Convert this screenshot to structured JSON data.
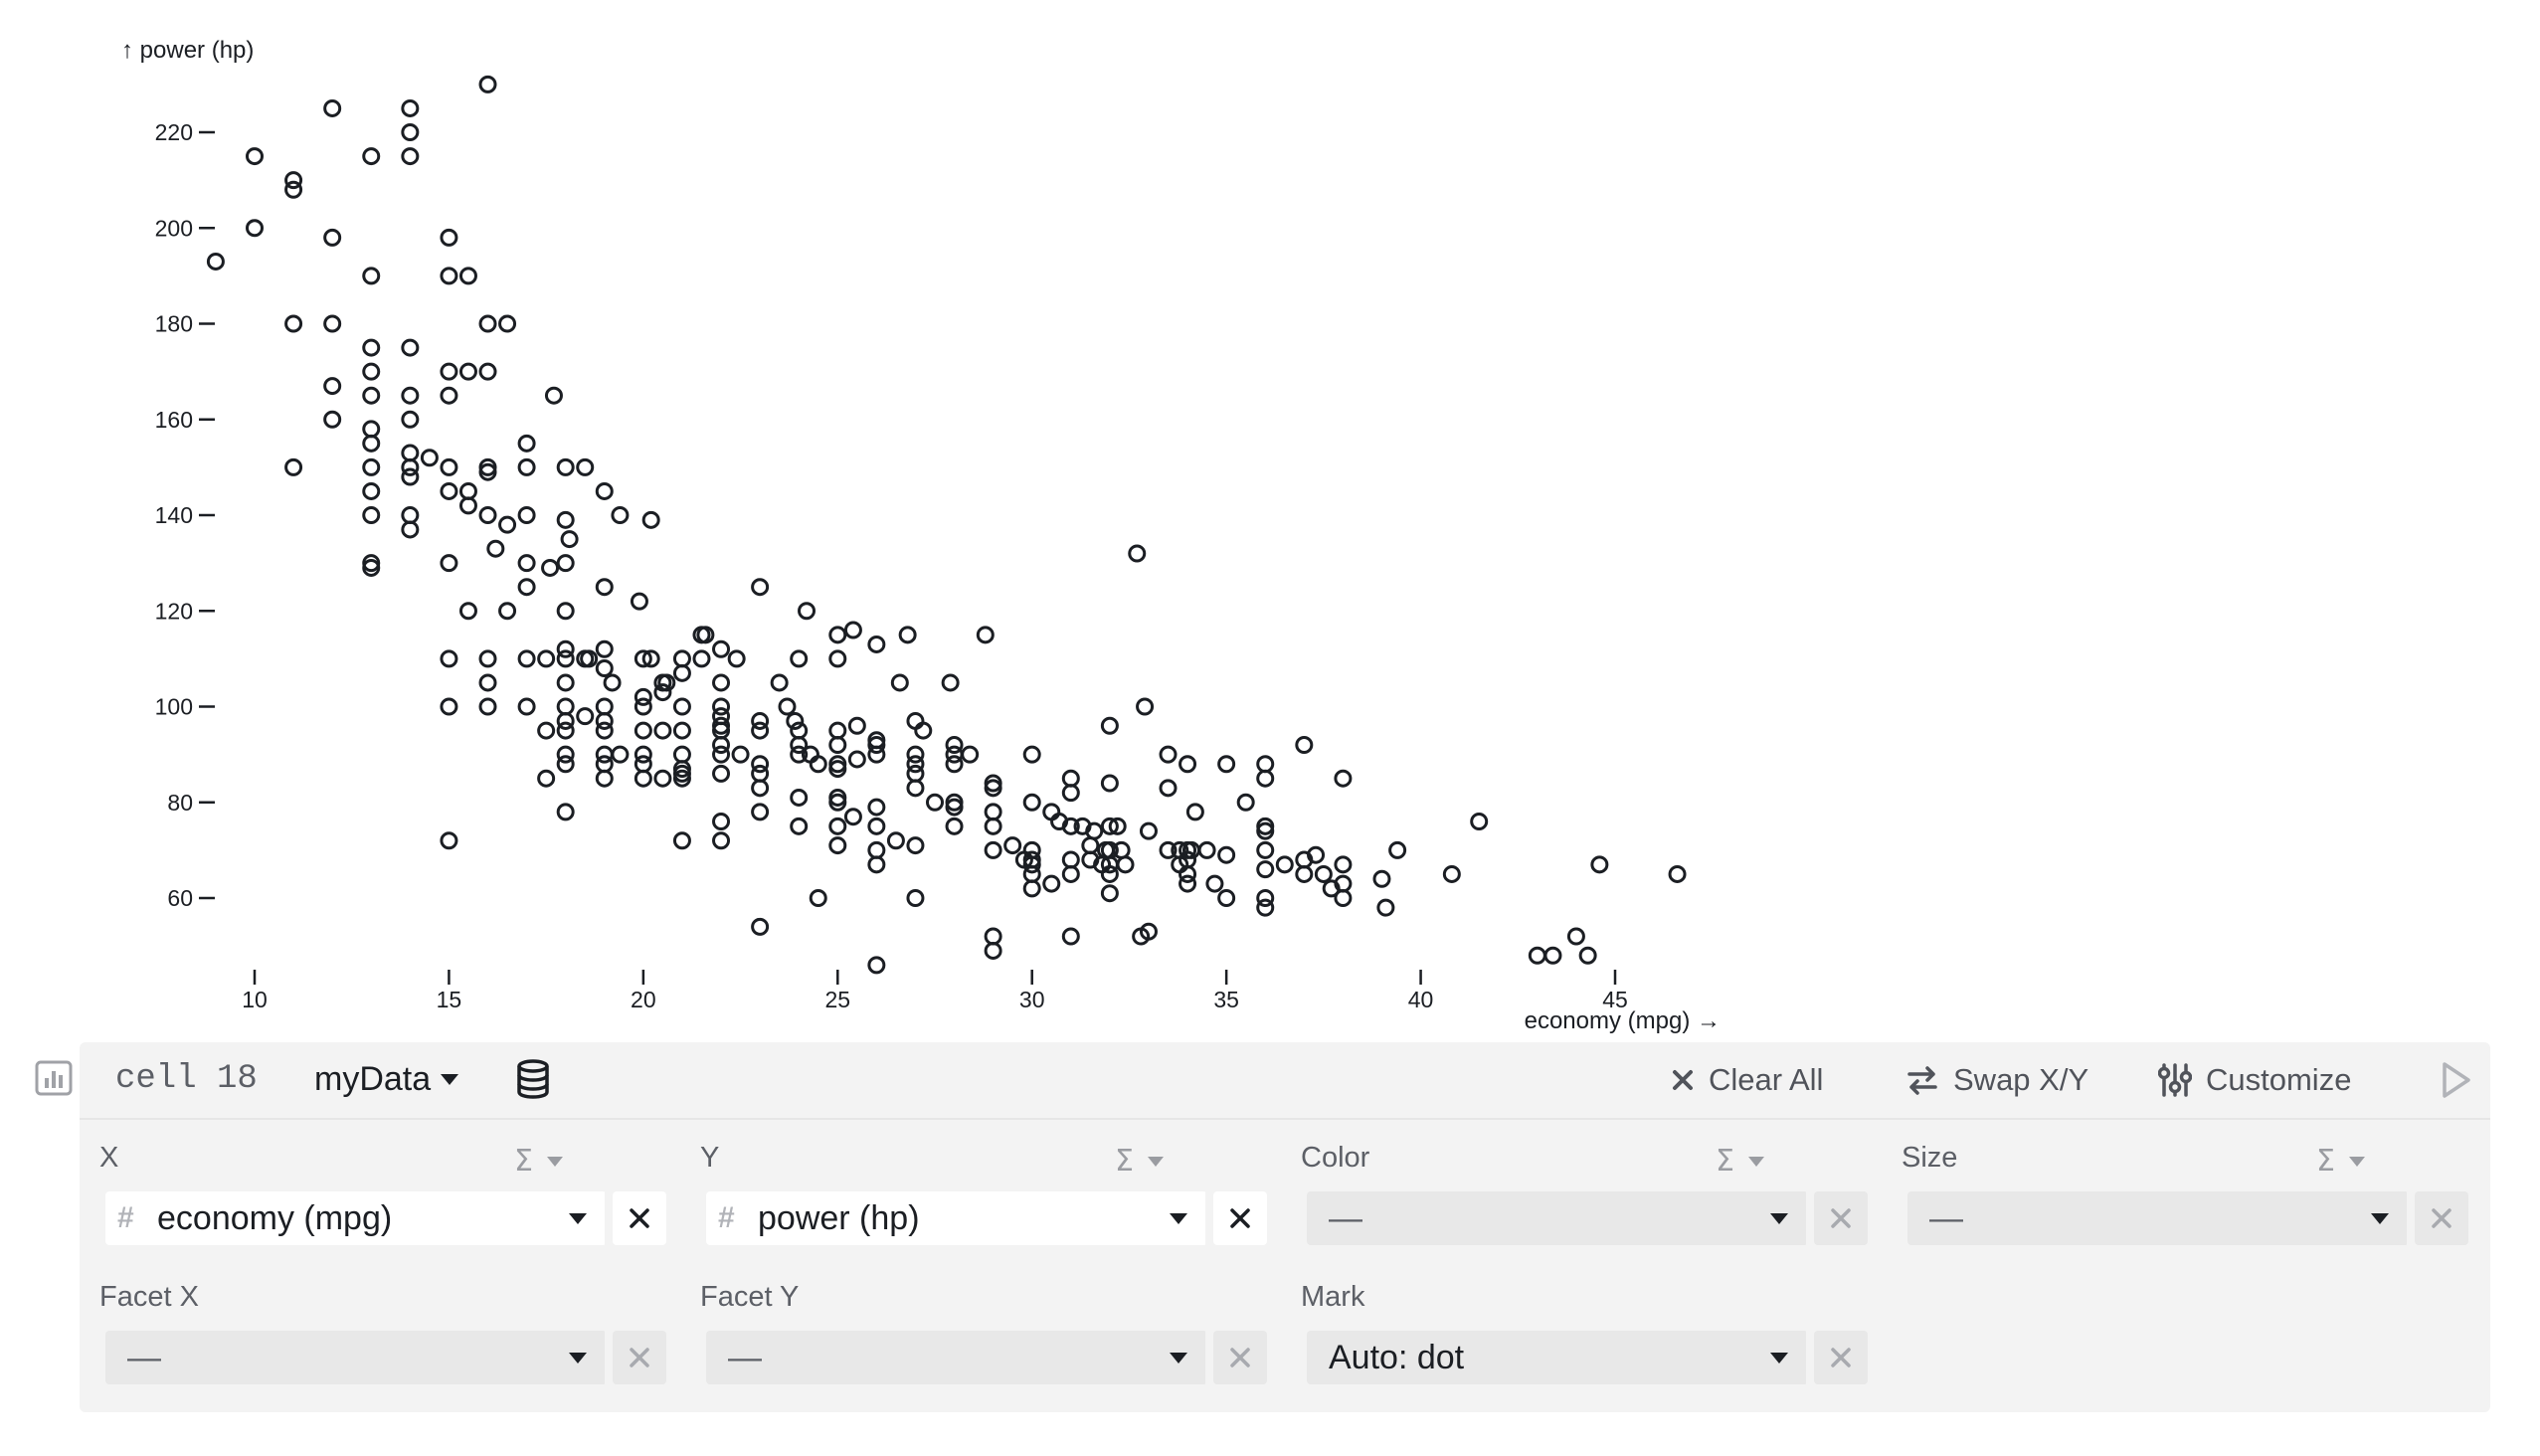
{
  "chart_data": {
    "type": "scatter",
    "xlabel": "economy (mpg) →",
    "ylabel": "↑ power (hp)",
    "xlim": [
      9,
      47
    ],
    "ylim": [
      45,
      232
    ],
    "xticks": [
      10,
      15,
      20,
      25,
      30,
      35,
      40,
      45
    ],
    "yticks": [
      60,
      80,
      100,
      120,
      140,
      160,
      180,
      200,
      220
    ],
    "points": [
      [
        9,
        193
      ],
      [
        10,
        215
      ],
      [
        10,
        200
      ],
      [
        11,
        210
      ],
      [
        11,
        208
      ],
      [
        11,
        180
      ],
      [
        11,
        150
      ],
      [
        12,
        225
      ],
      [
        12,
        198
      ],
      [
        12,
        180
      ],
      [
        12,
        167
      ],
      [
        12,
        160
      ],
      [
        13,
        215
      ],
      [
        13,
        190
      ],
      [
        13,
        175
      ],
      [
        13,
        170
      ],
      [
        13,
        165
      ],
      [
        13,
        158
      ],
      [
        13,
        155
      ],
      [
        13,
        150
      ],
      [
        13,
        145
      ],
      [
        13,
        140
      ],
      [
        13,
        130
      ],
      [
        13,
        129
      ],
      [
        14,
        225
      ],
      [
        14,
        220
      ],
      [
        14,
        215
      ],
      [
        14,
        175
      ],
      [
        14,
        165
      ],
      [
        14,
        160
      ],
      [
        14,
        153
      ],
      [
        14,
        150
      ],
      [
        14,
        148
      ],
      [
        14,
        140
      ],
      [
        14,
        137
      ],
      [
        14.5,
        152
      ],
      [
        15,
        198
      ],
      [
        15,
        190
      ],
      [
        15,
        170
      ],
      [
        15,
        165
      ],
      [
        15,
        150
      ],
      [
        15,
        145
      ],
      [
        15,
        130
      ],
      [
        15,
        110
      ],
      [
        15,
        100
      ],
      [
        15,
        72
      ],
      [
        15.5,
        190
      ],
      [
        15.5,
        170
      ],
      [
        15.5,
        145
      ],
      [
        15.5,
        142
      ],
      [
        15.5,
        120
      ],
      [
        16,
        230
      ],
      [
        16,
        180
      ],
      [
        16,
        170
      ],
      [
        16,
        150
      ],
      [
        16,
        149
      ],
      [
        16,
        140
      ],
      [
        16,
        110
      ],
      [
        16,
        105
      ],
      [
        16,
        100
      ],
      [
        16.2,
        133
      ],
      [
        16.5,
        180
      ],
      [
        16.5,
        138
      ],
      [
        16.5,
        120
      ],
      [
        17,
        155
      ],
      [
        17,
        150
      ],
      [
        17,
        140
      ],
      [
        17,
        130
      ],
      [
        17,
        125
      ],
      [
        17,
        110
      ],
      [
        17,
        100
      ],
      [
        17.5,
        110
      ],
      [
        17.5,
        95
      ],
      [
        17.6,
        129
      ],
      [
        17.7,
        165
      ],
      [
        17.5,
        85
      ],
      [
        18,
        150
      ],
      [
        18,
        139
      ],
      [
        18,
        130
      ],
      [
        18,
        120
      ],
      [
        18,
        112
      ],
      [
        18,
        110
      ],
      [
        18,
        105
      ],
      [
        18,
        100
      ],
      [
        18,
        97
      ],
      [
        18,
        95
      ],
      [
        18,
        90
      ],
      [
        18,
        88
      ],
      [
        18,
        78
      ],
      [
        18.1,
        135
      ],
      [
        18.5,
        150
      ],
      [
        18.5,
        110
      ],
      [
        18.6,
        110
      ],
      [
        18.5,
        98
      ],
      [
        19,
        145
      ],
      [
        19,
        125
      ],
      [
        19,
        112
      ],
      [
        19,
        108
      ],
      [
        19,
        100
      ],
      [
        19,
        97
      ],
      [
        19,
        95
      ],
      [
        19,
        90
      ],
      [
        19,
        88
      ],
      [
        19,
        85
      ],
      [
        19.2,
        105
      ],
      [
        19.4,
        140
      ],
      [
        19.4,
        90
      ],
      [
        19.9,
        122
      ],
      [
        20,
        110
      ],
      [
        20,
        102
      ],
      [
        20,
        100
      ],
      [
        20,
        95
      ],
      [
        20,
        90
      ],
      [
        20,
        88
      ],
      [
        20,
        85
      ],
      [
        20.2,
        139
      ],
      [
        20.5,
        103
      ],
      [
        20.2,
        110
      ],
      [
        20.5,
        105
      ],
      [
        20.5,
        95
      ],
      [
        20.5,
        85
      ],
      [
        20.6,
        105
      ],
      [
        21,
        110
      ],
      [
        21,
        107
      ],
      [
        21,
        100
      ],
      [
        21,
        95
      ],
      [
        21,
        90
      ],
      [
        21,
        87
      ],
      [
        21,
        86
      ],
      [
        21,
        85
      ],
      [
        21,
        72
      ],
      [
        21.5,
        115
      ],
      [
        21.6,
        115
      ],
      [
        21.5,
        110
      ],
      [
        22,
        112
      ],
      [
        22,
        105
      ],
      [
        22,
        100
      ],
      [
        22,
        98
      ],
      [
        22,
        96
      ],
      [
        22,
        95
      ],
      [
        22,
        92
      ],
      [
        22,
        90
      ],
      [
        22,
        86
      ],
      [
        22,
        76
      ],
      [
        22,
        72
      ],
      [
        22.4,
        110
      ],
      [
        22.5,
        90
      ],
      [
        23,
        125
      ],
      [
        23,
        97
      ],
      [
        23,
        95
      ],
      [
        23,
        88
      ],
      [
        23,
        86
      ],
      [
        23,
        83
      ],
      [
        23,
        78
      ],
      [
        23,
        54
      ],
      [
        23.5,
        105
      ],
      [
        23.7,
        100
      ],
      [
        23.9,
        97
      ],
      [
        24,
        110
      ],
      [
        24,
        95
      ],
      [
        24,
        92
      ],
      [
        24,
        90
      ],
      [
        24,
        81
      ],
      [
        24,
        75
      ],
      [
        24.2,
        120
      ],
      [
        24.3,
        90
      ],
      [
        24.5,
        88
      ],
      [
        24.5,
        60
      ],
      [
        25,
        115
      ],
      [
        25,
        110
      ],
      [
        25,
        95
      ],
      [
        25,
        92
      ],
      [
        25,
        88
      ],
      [
        25,
        87
      ],
      [
        25,
        81
      ],
      [
        25,
        80
      ],
      [
        25,
        75
      ],
      [
        25,
        71
      ],
      [
        25.4,
        116
      ],
      [
        25.4,
        77
      ],
      [
        25.5,
        96
      ],
      [
        25.5,
        89
      ],
      [
        26,
        113
      ],
      [
        26,
        93
      ],
      [
        26,
        92
      ],
      [
        26,
        90
      ],
      [
        26,
        79
      ],
      [
        26,
        75
      ],
      [
        26,
        70
      ],
      [
        26,
        67
      ],
      [
        26,
        46
      ],
      [
        26.5,
        72
      ],
      [
        26.6,
        105
      ],
      [
        26.8,
        115
      ],
      [
        27,
        97
      ],
      [
        27,
        90
      ],
      [
        27,
        88
      ],
      [
        27,
        86
      ],
      [
        27,
        83
      ],
      [
        27,
        71
      ],
      [
        27,
        60
      ],
      [
        27.2,
        95
      ],
      [
        27.5,
        80
      ],
      [
        27.9,
        105
      ],
      [
        28,
        92
      ],
      [
        28,
        90
      ],
      [
        28,
        88
      ],
      [
        28,
        80
      ],
      [
        28,
        79
      ],
      [
        28,
        75
      ],
      [
        28.4,
        90
      ],
      [
        28.8,
        115
      ],
      [
        29,
        84
      ],
      [
        29,
        83
      ],
      [
        29,
        78
      ],
      [
        29,
        75
      ],
      [
        29,
        70
      ],
      [
        29,
        52
      ],
      [
        29,
        49
      ],
      [
        29.5,
        71
      ],
      [
        29.8,
        68
      ],
      [
        30,
        90
      ],
      [
        30,
        80
      ],
      [
        30,
        70
      ],
      [
        30,
        68
      ],
      [
        30,
        67
      ],
      [
        30,
        65
      ],
      [
        30,
        62
      ],
      [
        30.5,
        78
      ],
      [
        30.5,
        63
      ],
      [
        30.7,
        76
      ],
      [
        31,
        85
      ],
      [
        31,
        82
      ],
      [
        31,
        75
      ],
      [
        31,
        68
      ],
      [
        31,
        65
      ],
      [
        31,
        52
      ],
      [
        31.3,
        75
      ],
      [
        31.5,
        71
      ],
      [
        31.5,
        68
      ],
      [
        31.6,
        74
      ],
      [
        31.8,
        67
      ],
      [
        31.9,
        70
      ],
      [
        32,
        96
      ],
      [
        32,
        84
      ],
      [
        32,
        75
      ],
      [
        32,
        70
      ],
      [
        32,
        67
      ],
      [
        32,
        65
      ],
      [
        32,
        61
      ],
      [
        32.2,
        75
      ],
      [
        32.3,
        70
      ],
      [
        32.4,
        67
      ],
      [
        32.7,
        132
      ],
      [
        32.8,
        52
      ],
      [
        32.9,
        100
      ],
      [
        33,
        74
      ],
      [
        33,
        53
      ],
      [
        33.5,
        90
      ],
      [
        33.5,
        83
      ],
      [
        33.5,
        70
      ],
      [
        33.8,
        70
      ],
      [
        33.8,
        67
      ],
      [
        34,
        88
      ],
      [
        34,
        70
      ],
      [
        34,
        68
      ],
      [
        34,
        65
      ],
      [
        34,
        63
      ],
      [
        34.1,
        70
      ],
      [
        34.2,
        78
      ],
      [
        34.5,
        70
      ],
      [
        34.7,
        63
      ],
      [
        35,
        88
      ],
      [
        35,
        69
      ],
      [
        35,
        60
      ],
      [
        35.5,
        80
      ],
      [
        36,
        88
      ],
      [
        36,
        85
      ],
      [
        36,
        75
      ],
      [
        36,
        74
      ],
      [
        36,
        70
      ],
      [
        36,
        66
      ],
      [
        36,
        60
      ],
      [
        36,
        58
      ],
      [
        36.5,
        67
      ],
      [
        37,
        92
      ],
      [
        37,
        68
      ],
      [
        37,
        65
      ],
      [
        37.3,
        69
      ],
      [
        37.5,
        65
      ],
      [
        37.7,
        62
      ],
      [
        38,
        85
      ],
      [
        38,
        67
      ],
      [
        38,
        63
      ],
      [
        38,
        60
      ],
      [
        39,
        64
      ],
      [
        39.1,
        58
      ],
      [
        39.4,
        70
      ],
      [
        40.8,
        65
      ],
      [
        41.5,
        76
      ],
      [
        43,
        48
      ],
      [
        43.4,
        48
      ],
      [
        44,
        52
      ],
      [
        44.3,
        48
      ],
      [
        44.6,
        67
      ],
      [
        46.6,
        65
      ]
    ]
  },
  "panel": {
    "cell_name": "cell 18",
    "dataset": "myData",
    "toolbar": {
      "clear_all": "Clear All",
      "swap": "Swap X/Y",
      "customize": "Customize"
    },
    "fields": {
      "x": {
        "title": "X",
        "value": "economy (mpg)"
      },
      "y": {
        "title": "Y",
        "value": "power (hp)"
      },
      "color": {
        "title": "Color",
        "value": "—"
      },
      "size": {
        "title": "Size",
        "value": "—"
      },
      "facet_x": {
        "title": "Facet X",
        "value": "—"
      },
      "facet_y": {
        "title": "Facet Y",
        "value": "—"
      },
      "mark": {
        "title": "Mark",
        "value": "Auto: dot"
      }
    },
    "sigma": "Σ",
    "hash": "#"
  }
}
